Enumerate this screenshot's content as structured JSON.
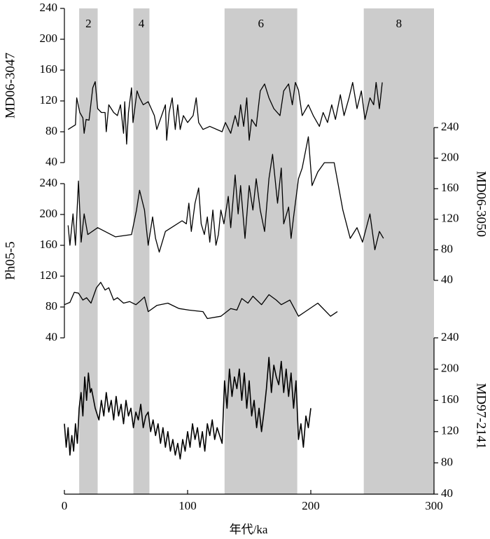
{
  "chart_data": {
    "type": "line",
    "xlabel": "年代/ka",
    "xlim": [
      0,
      300
    ],
    "xticks": [
      0,
      100,
      200,
      300
    ],
    "band_color": "#cccccc",
    "bands": [
      {
        "label": "2",
        "start": 12,
        "end": 27
      },
      {
        "label": "4",
        "start": 56,
        "end": 69
      },
      {
        "label": "6",
        "start": 130,
        "end": 189
      },
      {
        "label": "8",
        "start": 243,
        "end": 300
      }
    ],
    "series": [
      {
        "name": "MD06-3047",
        "color": "#000000",
        "side": "left",
        "ylim": [
          40,
          240
        ],
        "yticks": [
          40,
          80,
          120,
          160,
          200,
          240
        ],
        "x": [
          3,
          9,
          10,
          12.5,
          15,
          16,
          17.6,
          20,
          23,
          25,
          27,
          30,
          33,
          34,
          36,
          40,
          43,
          45.5,
          48,
          49,
          50.5,
          52,
          54.5,
          55.7,
          59,
          61,
          64,
          68,
          73,
          75,
          82,
          83,
          85,
          87.5,
          90,
          92,
          94,
          96.6,
          100,
          104.5,
          107,
          109,
          112.5,
          118,
          128,
          130.7,
          135,
          138.6,
          141,
          143,
          145.5,
          148,
          150,
          152,
          155.7,
          159,
          162.5,
          166,
          170,
          175,
          178,
          182,
          185,
          187.5,
          190,
          193,
          198,
          202,
          207,
          210,
          213.6,
          217,
          220,
          224,
          227,
          231,
          234,
          237.5,
          241,
          244,
          248,
          251,
          253,
          255.7,
          258
        ],
        "values": [
          83,
          89,
          124,
          105,
          98,
          78,
          96,
          95,
          137,
          145,
          110,
          105,
          105,
          80,
          115,
          105,
          101,
          115,
          78,
          119,
          64,
          105,
          137,
          92,
          133,
          124,
          115,
          119,
          101,
          83,
          115,
          69,
          105,
          124,
          83,
          115,
          83,
          101,
          92,
          101,
          124,
          92,
          83,
          87,
          80,
          92,
          78,
          101,
          87,
          115,
          87,
          124,
          69,
          96,
          87,
          133,
          142,
          124,
          110,
          101,
          133,
          142,
          115,
          144,
          134,
          101,
          115,
          101,
          87,
          105,
          92,
          115,
          96,
          128,
          101,
          124,
          144,
          110,
          133,
          96,
          124,
          115,
          144,
          110,
          144
        ]
      },
      {
        "name": "MD06-3050",
        "color": "#000000",
        "side": "right",
        "ylim": [
          40,
          240
        ],
        "yticks": [
          40,
          80,
          120,
          160,
          200,
          240
        ],
        "x": [
          3,
          4.5,
          7,
          9,
          11.4,
          13.6,
          16,
          19,
          27,
          41.5,
          54.5,
          58.5,
          61,
          65,
          68,
          71.6,
          74,
          77,
          82,
          95.5,
          99,
          101,
          103,
          106,
          109,
          111,
          113.6,
          116,
          118,
          120.5,
          123,
          125,
          127,
          129.5,
          133,
          135,
          138.6,
          141,
          143,
          146.6,
          150,
          153,
          155.7,
          159,
          162.5,
          166,
          169,
          173,
          176,
          178,
          182,
          184,
          186,
          190,
          193,
          198,
          201,
          205.7,
          211,
          219,
          226,
          232,
          237.5,
          242,
          248,
          252,
          255.7,
          259
        ],
        "values": [
          112,
          86,
          127,
          86,
          170,
          90,
          127,
          100,
          109,
          97,
          100,
          132,
          158,
          132,
          86,
          123,
          95,
          77,
          104,
          118,
          114,
          141,
          104,
          141,
          161,
          114,
          100,
          123,
          90,
          132,
          86,
          100,
          132,
          114,
          150,
          109,
          178,
          127,
          164,
          95,
          164,
          132,
          173,
          132,
          104,
          173,
          205,
          141,
          187,
          114,
          136,
          95,
          123,
          173,
          187,
          228,
          164,
          182,
          194,
          194,
          132,
          95,
          109,
          90,
          127,
          80,
          104,
          95
        ]
      },
      {
        "name": "Ph05-5",
        "color": "#000000",
        "side": "left",
        "ylim": [
          40,
          240
        ],
        "yticks": [
          40,
          80,
          120,
          160,
          200,
          240
        ],
        "x": [
          0,
          4.5,
          8,
          11.4,
          15,
          18,
          21.6,
          26,
          29.5,
          33,
          36,
          40,
          43,
          48,
          53,
          58,
          61,
          65,
          68,
          75,
          84,
          93,
          101,
          112.5,
          116,
          127,
          135,
          140,
          144,
          149,
          153,
          160,
          166,
          172,
          176,
          183,
          190,
          195.5,
          205.7,
          216,
          221.6
        ],
        "values": [
          83,
          86,
          99,
          98,
          89,
          92,
          85,
          105,
          112,
          102,
          105,
          89,
          92,
          85,
          87,
          83,
          87,
          93,
          74,
          82,
          85,
          78,
          76,
          74,
          65,
          68,
          78,
          76,
          91,
          85,
          94,
          83,
          96,
          89,
          83,
          89,
          68,
          74,
          85,
          68,
          74
        ]
      },
      {
        "name": "MD97-2141",
        "color": "#000000",
        "side": "right",
        "ylim": [
          40,
          240
        ],
        "yticks": [
          40,
          80,
          120,
          160,
          200,
          240
        ],
        "x": [
          0,
          1.5,
          3,
          4.5,
          6,
          7.5,
          9,
          10.5,
          12,
          13.5,
          15,
          16.5,
          18,
          19.5,
          21,
          22,
          25,
          28,
          30,
          32,
          34,
          36,
          38,
          40,
          42,
          44,
          46,
          48,
          50,
          52,
          54,
          56,
          58,
          60,
          62,
          64,
          66,
          68,
          70,
          72,
          74,
          76,
          78,
          80,
          82,
          84,
          86,
          88,
          90,
          92,
          94,
          96,
          98,
          100,
          102,
          104,
          106,
          108,
          110,
          112,
          114,
          116,
          118,
          120,
          122,
          124,
          126,
          128,
          130,
          132,
          134,
          136,
          138,
          140,
          142,
          144,
          146,
          148,
          150,
          152,
          154,
          156,
          158,
          160,
          162,
          164,
          166,
          168,
          170,
          172,
          174,
          176,
          178,
          180,
          182,
          184,
          186,
          188,
          190,
          192,
          194,
          196,
          198,
          200
        ],
        "values": [
          130,
          100,
          125,
          90,
          115,
          95,
          130,
          105,
          150,
          170,
          140,
          190,
          160,
          195,
          170,
          175,
          150,
          135,
          160,
          140,
          170,
          145,
          160,
          135,
          165,
          140,
          155,
          130,
          160,
          140,
          150,
          125,
          145,
          135,
          155,
          125,
          140,
          145,
          120,
          135,
          115,
          130,
          105,
          125,
          100,
          120,
          95,
          110,
          90,
          105,
          85,
          110,
          95,
          120,
          100,
          130,
          110,
          125,
          100,
          120,
          95,
          130,
          115,
          135,
          110,
          125,
          115,
          105,
          185,
          150,
          200,
          165,
          190,
          175,
          200,
          160,
          195,
          150,
          185,
          140,
          160,
          125,
          150,
          120,
          145,
          175,
          215,
          170,
          205,
          190,
          180,
          210,
          170,
          200,
          165,
          195,
          150,
          185,
          110,
          130,
          100,
          140,
          125,
          150
        ]
      }
    ]
  }
}
